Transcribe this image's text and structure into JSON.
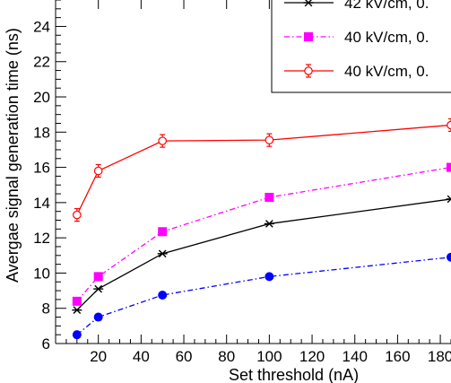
{
  "chart_data": {
    "type": "line",
    "xlabel": "Set threshold (nA)",
    "ylabel": "Avergae signal generation time (ns)",
    "xlim": [
      0,
      185
    ],
    "ylim": [
      6,
      25.5
    ],
    "x_ticks": [
      20,
      40,
      60,
      80,
      100,
      120,
      140,
      160,
      180
    ],
    "y_ticks": [
      6,
      8,
      10,
      12,
      14,
      16,
      18,
      20,
      22,
      24
    ],
    "legend_position": "top-right",
    "series": [
      {
        "name": "42 kV/cm, 0.",
        "color": "#000000",
        "line_style": "solid",
        "marker": "asterisk",
        "x": [
          10,
          20,
          50,
          100,
          185
        ],
        "y": [
          7.9,
          9.1,
          11.1,
          12.8,
          14.2
        ]
      },
      {
        "name": "40 kV/cm, 0.",
        "color": "#ff00ff",
        "line_style": "dash-dot",
        "marker": "square",
        "x": [
          10,
          20,
          50,
          100,
          185
        ],
        "y": [
          8.4,
          9.8,
          12.35,
          14.3,
          16.0
        ]
      },
      {
        "name": "40 kV/cm, 0.",
        "color": "#ff0000",
        "line_style": "solid",
        "marker": "open-circle-errorbar",
        "x": [
          10,
          20,
          50,
          100,
          185
        ],
        "y": [
          13.3,
          15.8,
          17.5,
          17.55,
          18.4
        ]
      },
      {
        "color": "#0000ff",
        "line_style": "dash-dot",
        "marker": "filled-circle",
        "x": [
          10,
          20,
          50,
          100,
          185
        ],
        "y": [
          6.5,
          7.5,
          8.75,
          9.8,
          10.9
        ]
      }
    ]
  }
}
